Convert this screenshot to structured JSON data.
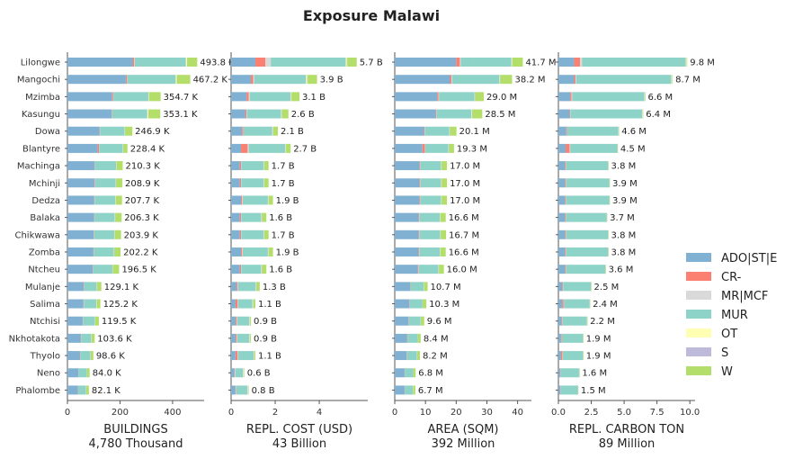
{
  "chart_data": {
    "type": "bar",
    "title": "Exposure Malawi",
    "categories": [
      "Lilongwe",
      "Mangochi",
      "Mzimba",
      "Kasungu",
      "Dowa",
      "Blantyre",
      "Machinga",
      "Mchinji",
      "Dedza",
      "Balaka",
      "Chikwawa",
      "Zomba",
      "Ntcheu",
      "Mulanje",
      "Salima",
      "Ntchisi",
      "Nkhotakota",
      "Thyolo",
      "Neno",
      "Phalombe"
    ],
    "legend": {
      "placement": "right",
      "items": [
        {
          "name": "ADO|ST|E",
          "color": "#80b1d3"
        },
        {
          "name": "CR-",
          "color": "#fb8072"
        },
        {
          "name": "MR|MCF",
          "color": "#d9d9d9"
        },
        {
          "name": "MUR",
          "color": "#8dd3c7"
        },
        {
          "name": "OT",
          "color": "#ffffb3"
        },
        {
          "name": "S",
          "color": "#bebada"
        },
        {
          "name": "W",
          "color": "#b3de69"
        }
      ]
    },
    "panels": [
      {
        "xlabel": "BUILDINGS",
        "total_label": "4,780 Thousand",
        "xlim": [
          0,
          520
        ],
        "ticks": [
          0,
          200,
          400
        ],
        "tick_labels": [
          "0",
          "200",
          "400"
        ],
        "data_labels": [
          "493.8 K",
          "467.2 K",
          "354.7 K",
          "353.1 K",
          "246.9 K",
          "228.4 K",
          "210.3 K",
          "208.9 K",
          "207.7 K",
          "206.3 K",
          "203.9 K",
          "202.2 K",
          "196.5 K",
          "129.1 K",
          "125.2 K",
          "119.5 K",
          "103.6 K",
          "98.6 K",
          "84.0 K",
          "82.1 K"
        ],
        "series": {
          "ADO|ST|E": [
            248,
            222,
            170,
            168,
            122,
            115,
            104,
            103,
            102,
            101,
            100,
            99,
            96,
            62,
            61,
            58,
            51,
            48,
            41,
            40
          ],
          "CR-": [
            6,
            4,
            4,
            1,
            1,
            5,
            1,
            2,
            1,
            1,
            1,
            1,
            1,
            1,
            1,
            1,
            1,
            1,
            0.5,
            0.5
          ],
          "MR|MCF": [
            2,
            1,
            1,
            1,
            1,
            1,
            1,
            1,
            1,
            1,
            1,
            1,
            1,
            1,
            1,
            1,
            1,
            1,
            0.5,
            0.5
          ],
          "MUR": [
            195,
            185,
            133,
            134,
            94,
            90,
            79,
            78,
            78,
            77,
            76,
            76,
            73,
            48,
            47,
            44,
            37,
            37,
            32,
            30
          ],
          "OT": [
            4,
            4,
            2,
            4,
            1,
            1,
            1,
            1,
            1,
            1,
            1,
            1,
            1,
            1,
            1,
            1,
            1,
            1,
            0.5,
            0.5
          ],
          "S": [
            1,
            1,
            1,
            1,
            1,
            1,
            1,
            1,
            1,
            1,
            1,
            1,
            1,
            1,
            1,
            1,
            1,
            1,
            0.5,
            0.5
          ],
          "W": [
            37.8,
            50.2,
            43.7,
            44.1,
            26.9,
            15.4,
            23.3,
            22.9,
            23.7,
            24.3,
            23.9,
            23.2,
            23.5,
            15.1,
            13.2,
            13.5,
            11.6,
            9.6,
            9.5,
            9.6
          ]
        }
      },
      {
        "xlabel": "REPL. COST (USD)",
        "total_label": "43 Billion",
        "xlim": [
          0,
          6.2
        ],
        "ticks": [
          0,
          2,
          4
        ],
        "tick_labels": [
          "0",
          "2",
          "4"
        ],
        "data_labels": [
          "5.7 B",
          "3.9 B",
          "3.1 B",
          "2.6 B",
          "2.1 B",
          "2.7 B",
          "1.7 B",
          "1.7 B",
          "1.9 B",
          "1.6 B",
          "1.7 B",
          "1.9 B",
          "1.6 B",
          "1.3 B",
          "1.1 B",
          "0.9 B",
          "0.9 B",
          "1.1 B",
          "0.6 B",
          "0.8 B"
        ],
        "series": {
          "ADO|ST|E": [
            1.1,
            0.9,
            0.7,
            0.65,
            0.5,
            0.45,
            0.4,
            0.4,
            0.45,
            0.4,
            0.4,
            0.45,
            0.4,
            0.25,
            0.2,
            0.2,
            0.2,
            0.2,
            0.15,
            0.2
          ],
          "CR-": [
            0.45,
            0.1,
            0.1,
            0.05,
            0.05,
            0.3,
            0.05,
            0.05,
            0.05,
            0.05,
            0.05,
            0.05,
            0.05,
            0.05,
            0.1,
            0.05,
            0.05,
            0.1,
            0.02,
            0.02
          ],
          "MR|MCF": [
            0.25,
            0.05,
            0.05,
            0.02,
            0.02,
            0.05,
            0.02,
            0.02,
            0.02,
            0.02,
            0.02,
            0.02,
            0.02,
            0.02,
            0.02,
            0.02,
            0.02,
            0.02,
            0.02,
            0.02
          ],
          "MUR": [
            3.4,
            2.35,
            1.85,
            1.55,
            1.3,
            1.65,
            1.0,
            1.0,
            1.15,
            0.9,
            1.0,
            1.15,
            0.9,
            0.8,
            0.65,
            0.55,
            0.55,
            0.7,
            0.35,
            0.5
          ],
          "OT": [
            0.05,
            0.05,
            0.02,
            0.02,
            0.02,
            0.02,
            0.02,
            0.02,
            0.02,
            0.02,
            0.02,
            0.02,
            0.02,
            0.02,
            0.02,
            0.02,
            0.02,
            0.02,
            0.02,
            0.02
          ],
          "S": [
            0.02,
            0.02,
            0.02,
            0.02,
            0.02,
            0.02,
            0.02,
            0.02,
            0.02,
            0.02,
            0.02,
            0.02,
            0.02,
            0.02,
            0.02,
            0.02,
            0.02,
            0.02,
            0.02,
            0.02
          ],
          "W": [
            0.43,
            0.43,
            0.36,
            0.29,
            0.21,
            0.21,
            0.19,
            0.19,
            0.19,
            0.19,
            0.19,
            0.19,
            0.19,
            0.14,
            0.09,
            0.04,
            0.04,
            0.04,
            0.02,
            0.02
          ]
        }
      },
      {
        "xlabel": "AREA (SQM)",
        "total_label": "392 Million",
        "xlim": [
          0,
          44.5
        ],
        "ticks": [
          0,
          10,
          20,
          30,
          40
        ],
        "tick_labels": [
          "0",
          "10",
          "20",
          "30",
          "40"
        ],
        "data_labels": [
          "41.7 M",
          "38.2 M",
          "29.0 M",
          "28.5 M",
          "20.1 M",
          "19.3 M",
          "17.0 M",
          "17.0 M",
          "17.0 M",
          "16.6 M",
          "16.7 M",
          "16.6 M",
          "16.0 M",
          "10.7 M",
          "10.3 M",
          "9.6 M",
          "8.4 M",
          "8.2 M",
          "6.8 M",
          "6.7 M"
        ],
        "series": {
          "ADO|ST|E": [
            20.0,
            18.0,
            13.8,
            13.3,
            9.5,
            9.0,
            8.0,
            8.0,
            8.0,
            7.8,
            7.8,
            7.8,
            7.5,
            5.0,
            4.8,
            4.5,
            4.0,
            3.9,
            3.2,
            3.2
          ],
          "CR-": [
            1.2,
            0.5,
            0.4,
            0.2,
            0.2,
            0.8,
            0.2,
            0.2,
            0.2,
            0.2,
            0.2,
            0.2,
            0.2,
            0.1,
            0.1,
            0.1,
            0.1,
            0.1,
            0.05,
            0.05
          ],
          "MR|MCF": [
            0.3,
            0.2,
            0.2,
            0.1,
            0.1,
            0.1,
            0.1,
            0.1,
            0.1,
            0.1,
            0.1,
            0.1,
            0.1,
            0.05,
            0.05,
            0.05,
            0.05,
            0.05,
            0.05,
            0.05
          ],
          "MUR": [
            16.5,
            15.4,
            11.6,
            11.4,
            8.0,
            7.6,
            6.8,
            6.8,
            6.8,
            6.6,
            6.7,
            6.6,
            6.4,
            4.3,
            4.1,
            3.8,
            3.3,
            3.2,
            2.7,
            2.6
          ],
          "OT": [
            0.2,
            0.2,
            0.1,
            0.2,
            0.1,
            0.1,
            0.1,
            0.1,
            0.1,
            0.1,
            0.1,
            0.1,
            0.1,
            0.05,
            0.05,
            0.05,
            0.05,
            0.05,
            0.05,
            0.05
          ],
          "S": [
            0.1,
            0.1,
            0.1,
            0.1,
            0.1,
            0.1,
            0.1,
            0.1,
            0.1,
            0.1,
            0.1,
            0.1,
            0.1,
            0.05,
            0.05,
            0.05,
            0.05,
            0.05,
            0.05,
            0.05
          ],
          "W": [
            3.4,
            3.8,
            2.8,
            3.2,
            2.1,
            1.6,
            1.7,
            1.7,
            1.7,
            1.7,
            1.7,
            1.7,
            1.6,
            1.15,
            1.15,
            1.05,
            0.9,
            0.85,
            0.7,
            0.7
          ]
        }
      },
      {
        "xlabel": "REPL. CARBON TON",
        "total_label": "89 Million",
        "xlim": [
          0,
          10.4
        ],
        "ticks": [
          0,
          2.5,
          5,
          7.5,
          10
        ],
        "tick_labels": [
          "0.0",
          "2.5",
          "5.0",
          "7.5",
          "10.0"
        ],
        "data_labels": [
          "9.8 M",
          "8.7 M",
          "6.6 M",
          "6.4 M",
          "4.6 M",
          "4.5 M",
          "3.8 M",
          "3.9 M",
          "3.9 M",
          "3.7 M",
          "3.8 M",
          "3.8 M",
          "3.6 M",
          "2.5 M",
          "2.4 M",
          "2.2 M",
          "1.9 M",
          "1.9 M",
          "1.6 M",
          "1.5 M"
        ],
        "series": {
          "ADO|ST|E": [
            1.2,
            1.2,
            0.9,
            0.85,
            0.6,
            0.55,
            0.5,
            0.5,
            0.5,
            0.5,
            0.5,
            0.5,
            0.5,
            0.3,
            0.3,
            0.25,
            0.2,
            0.2,
            0.15,
            0.15
          ],
          "CR-": [
            0.45,
            0.1,
            0.1,
            0.05,
            0.05,
            0.3,
            0.05,
            0.05,
            0.05,
            0.05,
            0.05,
            0.05,
            0.05,
            0.05,
            0.1,
            0.05,
            0.05,
            0.1,
            0.02,
            0.02
          ],
          "MR|MCF": [
            0.15,
            0.05,
            0.05,
            0.02,
            0.02,
            0.05,
            0.02,
            0.02,
            0.02,
            0.02,
            0.02,
            0.02,
            0.02,
            0.02,
            0.02,
            0.02,
            0.02,
            0.02,
            0.02,
            0.02
          ],
          "MUR": [
            7.9,
            7.25,
            5.5,
            5.45,
            3.9,
            3.58,
            3.2,
            3.3,
            3.3,
            3.1,
            3.2,
            3.2,
            3.0,
            2.1,
            1.95,
            1.85,
            1.6,
            1.55,
            1.38,
            1.28
          ],
          "OT": [
            0.05,
            0.05,
            0.02,
            0.03,
            0.01,
            0.01,
            0.01,
            0.01,
            0.01,
            0.01,
            0.01,
            0.01,
            0.01,
            0.01,
            0.01,
            0.01,
            0.01,
            0.01,
            0.01,
            0.01
          ],
          "S": [
            0.02,
            0.02,
            0.02,
            0.02,
            0.01,
            0.01,
            0.01,
            0.01,
            0.01,
            0.01,
            0.01,
            0.01,
            0.01,
            0.01,
            0.01,
            0.01,
            0.01,
            0.01,
            0.01,
            0.01
          ],
          "W": [
            0.03,
            0.03,
            0.01,
            0.03,
            0.01,
            0.01,
            0.01,
            0.01,
            0.01,
            0.01,
            0.01,
            0.01,
            0.01,
            0.01,
            0.01,
            0.01,
            0.01,
            0.01,
            0.01,
            0.01
          ]
        }
      }
    ]
  }
}
